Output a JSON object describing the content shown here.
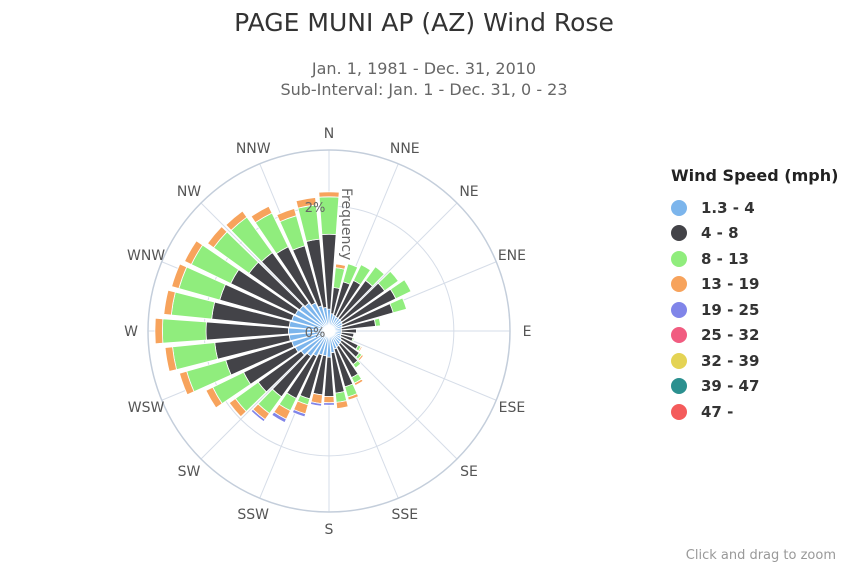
{
  "header": {
    "title": "PAGE MUNI AP (AZ) Wind Rose",
    "subtitle_line1": "Jan. 1, 1981 - Dec. 31, 2010",
    "subtitle_line2": "Sub-Interval: Jan. 1 - Dec. 31, 0 - 23"
  },
  "footer": {
    "credits": "Click and drag to zoom"
  },
  "chart_data": {
    "type": "bar",
    "polar": true,
    "stacked": true,
    "title": "PAGE MUNI AP (AZ) Wind Rose",
    "subtitle": "Jan. 1, 1981 - Dec. 31, 2010 / Sub-Interval: Jan. 1 - Dec. 31, 0 - 23",
    "radial_axis_label": "Frequency",
    "radial_ticks": [
      "0%",
      "2%"
    ],
    "radial_range": [
      0,
      2.9
    ],
    "grid": true,
    "legend_title": "Wind Speed (mph)",
    "legend_position": "right",
    "compass_labels": [
      "N",
      "NNE",
      "NE",
      "ENE",
      "E",
      "ESE",
      "SE",
      "SSE",
      "S",
      "SSW",
      "SW",
      "WSW",
      "W",
      "WNW",
      "NW",
      "NNW"
    ],
    "directions_deg": [
      0,
      10,
      20,
      30,
      40,
      50,
      60,
      70,
      80,
      90,
      100,
      110,
      120,
      130,
      140,
      150,
      160,
      170,
      180,
      190,
      200,
      210,
      220,
      230,
      240,
      250,
      260,
      270,
      280,
      290,
      300,
      310,
      320,
      330,
      340,
      350
    ],
    "series": [
      {
        "name": "1.3 - 4",
        "color": "#7cb5ec",
        "values": [
          0.35,
          0.28,
          0.26,
          0.25,
          0.25,
          0.25,
          0.24,
          0.22,
          0.2,
          0.2,
          0.2,
          0.2,
          0.22,
          0.25,
          0.26,
          0.28,
          0.3,
          0.35,
          0.42,
          0.4,
          0.4,
          0.45,
          0.5,
          0.55,
          0.6,
          0.62,
          0.64,
          0.65,
          0.64,
          0.62,
          0.6,
          0.58,
          0.55,
          0.5,
          0.42,
          0.38
        ]
      },
      {
        "name": "4 - 8",
        "color": "#434348",
        "values": [
          1.2,
          0.42,
          0.56,
          0.65,
          0.75,
          0.85,
          0.95,
          0.85,
          0.55,
          0.24,
          0.2,
          0.2,
          0.3,
          0.35,
          0.4,
          0.55,
          0.63,
          0.65,
          0.63,
          0.63,
          0.73,
          0.75,
          0.8,
          0.85,
          0.92,
          1.1,
          1.2,
          1.32,
          1.25,
          1.2,
          1.15,
          1.0,
          1.0,
          1.0,
          1.0,
          1.1
        ]
      },
      {
        "name": "8 - 13",
        "color": "#90ed7d",
        "values": [
          0.6,
          0.32,
          0.3,
          0.28,
          0.27,
          0.27,
          0.27,
          0.22,
          0.08,
          0.0,
          0.0,
          0.02,
          0.05,
          0.05,
          0.07,
          0.1,
          0.17,
          0.15,
          0.0,
          0.0,
          0.1,
          0.22,
          0.33,
          0.45,
          0.55,
          0.65,
          0.68,
          0.7,
          0.65,
          0.68,
          0.7,
          0.7,
          0.7,
          0.6,
          0.5,
          0.55
        ]
      },
      {
        "name": "13 - 19",
        "color": "#f7a35c",
        "values": [
          0.08,
          0.06,
          0.0,
          0.0,
          0.0,
          0.0,
          0.0,
          0.0,
          0.0,
          0.0,
          0.0,
          0.0,
          0.02,
          0.03,
          0.0,
          0.04,
          0.05,
          0.1,
          0.1,
          0.14,
          0.15,
          0.15,
          0.12,
          0.12,
          0.12,
          0.12,
          0.12,
          0.12,
          0.12,
          0.12,
          0.12,
          0.12,
          0.12,
          0.12,
          0.12,
          0.12
        ]
      },
      {
        "name": "19 - 25",
        "color": "#8085e9",
        "values": [
          0,
          0,
          0,
          0,
          0,
          0,
          0,
          0,
          0,
          0,
          0,
          0,
          0,
          0,
          0,
          0,
          0,
          0,
          0.04,
          0.04,
          0.05,
          0.06,
          0.04,
          0,
          0,
          0,
          0,
          0,
          0,
          0,
          0,
          0,
          0,
          0,
          0,
          0
        ]
      },
      {
        "name": "25 - 32",
        "color": "#f15c80",
        "values": [
          0,
          0,
          0,
          0,
          0,
          0,
          0,
          0,
          0,
          0,
          0,
          0,
          0,
          0,
          0,
          0,
          0,
          0,
          0,
          0,
          0,
          0,
          0,
          0,
          0,
          0,
          0,
          0,
          0,
          0,
          0,
          0,
          0,
          0,
          0,
          0
        ]
      },
      {
        "name": "32 - 39",
        "color": "#e4d354",
        "values": [
          0,
          0,
          0,
          0,
          0,
          0,
          0,
          0,
          0,
          0,
          0,
          0,
          0,
          0,
          0,
          0,
          0,
          0,
          0,
          0,
          0,
          0,
          0,
          0,
          0,
          0,
          0,
          0,
          0,
          0,
          0,
          0,
          0,
          0,
          0,
          0
        ]
      },
      {
        "name": "39 - 47",
        "color": "#2b908f",
        "values": [
          0,
          0,
          0,
          0,
          0,
          0,
          0,
          0,
          0,
          0,
          0,
          0,
          0,
          0,
          0,
          0,
          0,
          0,
          0,
          0,
          0,
          0,
          0,
          0,
          0,
          0,
          0,
          0,
          0,
          0,
          0,
          0,
          0,
          0,
          0,
          0
        ]
      },
      {
        "name": "47 -",
        "color": "#f45b5b",
        "values": [
          0,
          0,
          0,
          0,
          0,
          0,
          0,
          0,
          0,
          0,
          0,
          0,
          0,
          0,
          0,
          0,
          0,
          0,
          0,
          0,
          0,
          0,
          0,
          0,
          0,
          0,
          0,
          0,
          0,
          0,
          0,
          0,
          0,
          0,
          0,
          0
        ]
      }
    ]
  }
}
